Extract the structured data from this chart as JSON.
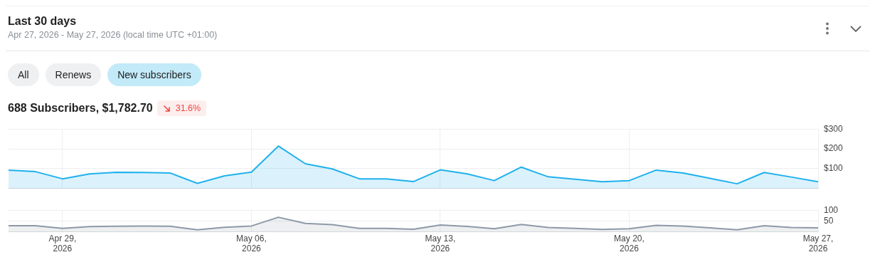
{
  "chart_data": [
    {
      "type": "area",
      "title": "Last 30 days",
      "subtitle": "Apr 27, 2026 - May 27, 2026 (local time UTC +01:00)",
      "annotations": [
        "All",
        "Renews",
        "New subscribers",
        "688 Subscribers, $1,782.70",
        "31.6%"
      ],
      "x": [
        "2026-04-27",
        "2026-04-28",
        "2026-04-29",
        "2026-04-30",
        "2026-05-01",
        "2026-05-02",
        "2026-05-03",
        "2026-05-04",
        "2026-05-05",
        "2026-05-06",
        "2026-05-07",
        "2026-05-08",
        "2026-05-09",
        "2026-05-10",
        "2026-05-11",
        "2026-05-12",
        "2026-05-13",
        "2026-05-14",
        "2026-05-15",
        "2026-05-16",
        "2026-05-17",
        "2026-05-18",
        "2026-05-19",
        "2026-05-20",
        "2026-05-21",
        "2026-05-22",
        "2026-05-23",
        "2026-05-24",
        "2026-05-25",
        "2026-05-26",
        "2026-05-27"
      ],
      "series": [
        {
          "color": "#1fb1ed",
          "values": [
            93,
            85,
            49,
            74,
            82,
            81,
            78,
            26,
            64,
            83,
            214,
            125,
            99,
            49,
            49,
            35,
            94,
            74,
            40,
            108,
            59,
            47,
            34,
            40,
            93,
            78,
            51,
            24,
            81,
            58,
            34
          ]
        }
      ],
      "xlim": [
        "2026-04-27",
        "2026-05-27"
      ],
      "xticks": [
        {
          "value": "2026-04-29",
          "label": null
        },
        {
          "value": "2026-05-06",
          "label": null
        },
        {
          "value": "2026-05-13",
          "label": null
        },
        {
          "value": "2026-05-20",
          "label": null
        },
        {
          "value": "2026-05-27",
          "label": null
        }
      ],
      "ylim": [
        0,
        300
      ],
      "yticks": [
        {
          "value": 100,
          "label": "$100"
        },
        {
          "value": 200,
          "label": "$200"
        },
        {
          "value": 300,
          "label": "$300"
        }
      ],
      "grid": true,
      "tick_labels": "y"
    },
    {
      "type": "area",
      "x": [
        "2026-04-27",
        "2026-04-28",
        "2026-04-29",
        "2026-04-30",
        "2026-05-01",
        "2026-05-02",
        "2026-05-03",
        "2026-05-04",
        "2026-05-05",
        "2026-05-06",
        "2026-05-07",
        "2026-05-08",
        "2026-05-09",
        "2026-05-10",
        "2026-05-11",
        "2026-05-12",
        "2026-05-13",
        "2026-05-14",
        "2026-05-15",
        "2026-05-16",
        "2026-05-17",
        "2026-05-18",
        "2026-05-19",
        "2026-05-20",
        "2026-05-21",
        "2026-05-22",
        "2026-05-23",
        "2026-05-24",
        "2026-05-25",
        "2026-05-26",
        "2026-05-27"
      ],
      "series": [
        {
          "color": "#8e99a8",
          "values": [
            27,
            27,
            15,
            23,
            25,
            26,
            25,
            8,
            20,
            26,
            67,
            38,
            32,
            15,
            15,
            11,
            31,
            24,
            13,
            33,
            19,
            15,
            10,
            13,
            29,
            26,
            17,
            8,
            27,
            19,
            17
          ]
        }
      ],
      "xlim": [
        "2026-04-27",
        "2026-05-27"
      ],
      "xticks": [
        {
          "value": "2026-04-29",
          "label": "Apr 29, 2026"
        },
        {
          "value": "2026-05-06",
          "label": "May 06, 2026"
        },
        {
          "value": "2026-05-13",
          "label": "May 13, 2026"
        },
        {
          "value": "2026-05-20",
          "label": "May 20, 2026"
        },
        {
          "value": "2026-05-27",
          "label": "May 27, 2026"
        }
      ],
      "ylim": [
        0,
        100
      ],
      "yticks": [
        50,
        100
      ],
      "grid": true
    }
  ]
}
